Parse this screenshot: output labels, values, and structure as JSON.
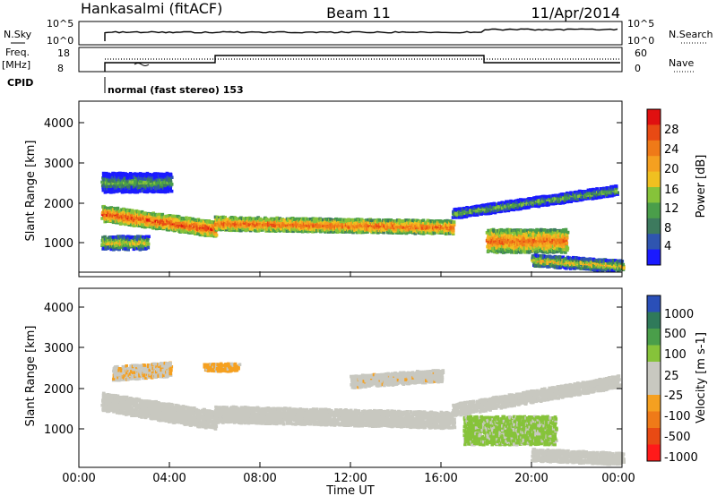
{
  "header": {
    "radar": "Hankasalmi (fitACF)",
    "beam": "Beam 11",
    "date": "11/Apr/2014"
  },
  "noise_panel": {
    "left_label": "N.Sky",
    "right_label": "N.Search",
    "left_ticks": [
      "10^5",
      "10^0"
    ],
    "right_ticks": [
      "10^5",
      "10^0"
    ]
  },
  "freq_panel": {
    "left_label_1": "Freq.",
    "left_label_2": "[MHz]",
    "right_label": "Nave",
    "left_ticks": [
      "18",
      "8"
    ],
    "right_ticks": [
      "60",
      "0"
    ]
  },
  "cpid": {
    "label": "CPID",
    "text": "normal (fast stereo) 153"
  },
  "colors": {
    "power_scale": [
      "#1a1aff",
      "#2f55b0",
      "#3d7a5e",
      "#4a9e4a",
      "#86c33a",
      "#f0c020",
      "#f5a020",
      "#ef7a18",
      "#e84a14",
      "#e01010"
    ],
    "velocity_scale": [
      "#ff1a1a",
      "#e84a14",
      "#ef7a18",
      "#f5a020",
      "#c8c8c0",
      "#c8c8c0",
      "#86c33a",
      "#4a9e4a",
      "#2f7a5a",
      "#2a4fb8"
    ],
    "ground_scatter": "#c8c8c0"
  },
  "chart_data": [
    {
      "type": "heatmap",
      "panel": "power",
      "xlabel": "",
      "ylabel": "Slant Range [km]",
      "x_ticks": [
        "00:00",
        "04:00",
        "08:00",
        "12:00",
        "16:00",
        "20:00",
        "00:00"
      ],
      "y_ticks": [
        "1000",
        "2000",
        "3000",
        "4000"
      ],
      "ylim": [
        200,
        4600
      ],
      "colorbar": {
        "label": "Power [dB]",
        "ticks": [
          "4",
          "8",
          "12",
          "16",
          "20",
          "24",
          "28"
        ],
        "range": [
          0,
          30
        ]
      },
      "scatter_regions": [
        {
          "t_start": 1.0,
          "t_end": 6.0,
          "range_center": [
            1700,
            1300
          ],
          "width": 400,
          "power": 26
        },
        {
          "t_start": 6.0,
          "t_end": 16.5,
          "range_center": [
            1450,
            1350
          ],
          "width": 350,
          "power": 25
        },
        {
          "t_start": 16.5,
          "t_end": 23.7,
          "range_center": [
            1700,
            2300
          ],
          "width": 250,
          "power": 14
        },
        {
          "t_start": 1.0,
          "t_end": 4.0,
          "range_center": [
            2500,
            2500
          ],
          "width": 500,
          "power": 12
        },
        {
          "t_start": 1.0,
          "t_end": 3.0,
          "range_center": [
            950,
            950
          ],
          "width": 350,
          "power": 18
        },
        {
          "t_start": 18.0,
          "t_end": 21.5,
          "range_center": [
            1000,
            1000
          ],
          "width": 600,
          "power": 24
        },
        {
          "t_start": 20.0,
          "t_end": 24.0,
          "range_center": [
            500,
            350
          ],
          "width": 300,
          "power": 18
        }
      ]
    },
    {
      "type": "heatmap",
      "panel": "velocity",
      "xlabel": "Time UT",
      "ylabel": "Slant Range [km]",
      "x_ticks": [
        "00:00",
        "04:00",
        "08:00",
        "12:00",
        "16:00",
        "20:00",
        "00:00"
      ],
      "y_ticks": [
        "1000",
        "2000",
        "3000",
        "4000"
      ],
      "ylim": [
        200,
        4600
      ],
      "colorbar": {
        "label": "Velocity [m s-1]",
        "ticks": [
          "1000",
          "500",
          "100",
          "25",
          "-25",
          "-100",
          "-500",
          "-1000"
        ],
        "range": [
          -1200,
          1200
        ]
      },
      "scatter_regions": [
        {
          "t_start": 1.0,
          "t_end": 6.0,
          "range_center": [
            1800,
            1350
          ],
          "width": 450,
          "velocity": 0
        },
        {
          "t_start": 6.0,
          "t_end": 16.5,
          "range_center": [
            1500,
            1350
          ],
          "width": 400,
          "velocity": 0
        },
        {
          "t_start": 16.5,
          "t_end": 23.8,
          "range_center": [
            1600,
            2300
          ],
          "width": 300,
          "velocity": 0
        },
        {
          "t_start": 1.5,
          "t_end": 4.0,
          "range_center": [
            2500,
            2600
          ],
          "width": 350,
          "velocity": -200
        },
        {
          "t_start": 5.5,
          "t_end": 7.0,
          "range_center": [
            2650,
            2650
          ],
          "width": 200,
          "velocity": -300
        },
        {
          "t_start": 12.0,
          "t_end": 16.0,
          "range_center": [
            2300,
            2450
          ],
          "width": 300,
          "velocity": -150
        },
        {
          "t_start": 17.0,
          "t_end": 21.0,
          "range_center": [
            1100,
            1100
          ],
          "width": 700,
          "velocity": 300
        },
        {
          "t_start": 20.0,
          "t_end": 24.0,
          "range_center": [
            500,
            400
          ],
          "width": 300,
          "velocity": -100
        }
      ]
    }
  ]
}
